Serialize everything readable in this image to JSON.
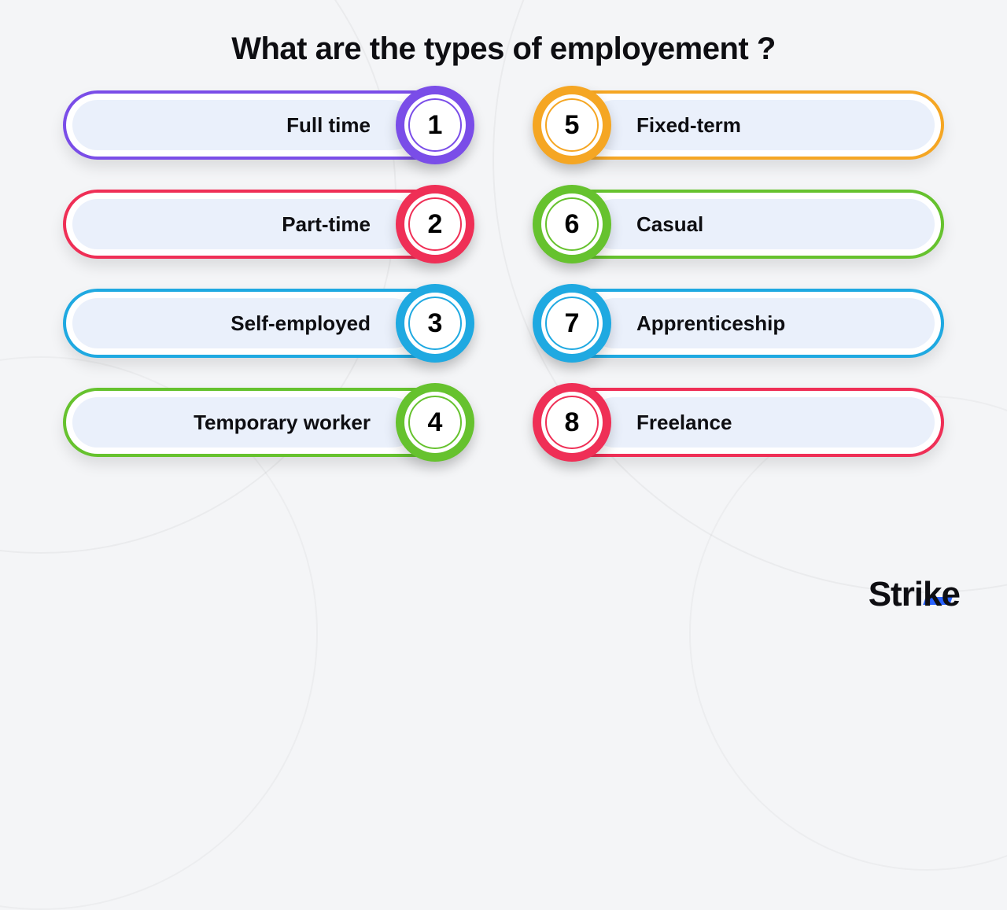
{
  "title": "What are the types of employement ?",
  "title_fontsize": 40,
  "title_color": "#0e0e12",
  "background_color": "#f4f5f7",
  "pill_fill": "#eaf0fb",
  "pill_label_fontsize": 26,
  "num_fontsize": 34,
  "columns": 2,
  "row_gap": 38,
  "items": [
    {
      "n": "1",
      "label": "Full time",
      "color": "#7a4de8",
      "side": "left"
    },
    {
      "n": "2",
      "label": "Part-time",
      "color": "#ef2f56",
      "side": "left"
    },
    {
      "n": "3",
      "label": "Self-employed",
      "color": "#1fa9e1",
      "side": "left"
    },
    {
      "n": "4",
      "label": "Temporary worker",
      "color": "#66c22e",
      "side": "left"
    },
    {
      "n": "5",
      "label": "Fixed-term",
      "color": "#f5a623",
      "side": "right"
    },
    {
      "n": "6",
      "label": "Casual",
      "color": "#66c22e",
      "side": "right"
    },
    {
      "n": "7",
      "label": "Apprenticeship",
      "color": "#1fa9e1",
      "side": "right"
    },
    {
      "n": "8",
      "label": "Freelance",
      "color": "#ef2f56",
      "side": "right"
    }
  ],
  "brand": {
    "text_left": "Stri",
    "text_right": "ke",
    "color": "#0e0e12",
    "accent": "#2962ff",
    "fontsize": 44
  }
}
